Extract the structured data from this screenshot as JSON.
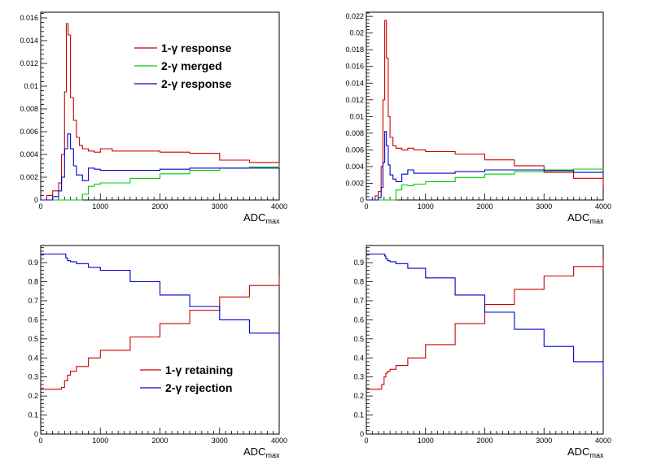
{
  "chart_data": [
    {
      "type": "line",
      "step": true,
      "xlabel": "ADC",
      "xlabel_sub": "max",
      "xlim": [
        0,
        4000
      ],
      "ylim": [
        0,
        0.0165
      ],
      "yticks": [
        0,
        0.002,
        0.004,
        0.006,
        0.008,
        0.01,
        0.012,
        0.014,
        0.016
      ],
      "ytick_labels": [
        "0",
        "0.002",
        "0.004",
        "0.006",
        "0.008",
        "0.01",
        "0.012",
        "0.014",
        "0.016"
      ],
      "xticks": [
        0,
        1000,
        2000,
        3000,
        4000
      ],
      "xtick_labels": [
        "0",
        "1000",
        "2000",
        "3000",
        "4000"
      ],
      "legend": {
        "placement": "top-right"
      },
      "series": [
        {
          "name": "1-γ response",
          "color": "#cc0000",
          "x": [
            0,
            100,
            200,
            300,
            350,
            400,
            430,
            460,
            500,
            550,
            600,
            650,
            700,
            800,
            900,
            1000,
            1200,
            1500,
            2000,
            2500,
            3000,
            3500,
            4000
          ],
          "y": [
            0,
            0.0004,
            0.0008,
            0.0015,
            0.004,
            0.0095,
            0.0155,
            0.0145,
            0.009,
            0.007,
            0.0055,
            0.0048,
            0.0045,
            0.0043,
            0.0042,
            0.0045,
            0.0043,
            0.0043,
            0.0042,
            0.0041,
            0.0035,
            0.0033,
            0.0027
          ]
        },
        {
          "name": "2-γ merged",
          "color": "#00cc00",
          "x": [
            0,
            500,
            700,
            800,
            900,
            1000,
            1500,
            2000,
            2500,
            3000,
            3500,
            4000
          ],
          "y": [
            0,
            0,
            0.0005,
            0.0012,
            0.0014,
            0.0015,
            0.0019,
            0.0023,
            0.0026,
            0.0028,
            0.0029,
            0.003
          ]
        },
        {
          "name": "2-γ response",
          "color": "#0000cc",
          "x": [
            0,
            200,
            300,
            350,
            400,
            450,
            500,
            550,
            600,
            700,
            800,
            900,
            1000,
            1500,
            2000,
            2500,
            3000,
            3500,
            4000
          ],
          "y": [
            0,
            0.0003,
            0.0008,
            0.002,
            0.0045,
            0.0058,
            0.0045,
            0.003,
            0.0022,
            0.0017,
            0.0028,
            0.0027,
            0.0026,
            0.0026,
            0.0027,
            0.0028,
            0.0028,
            0.0028,
            0.0027
          ]
        }
      ]
    },
    {
      "type": "line",
      "step": true,
      "xlabel": "ADC",
      "xlabel_sub": "max",
      "xlim": [
        0,
        4000
      ],
      "ylim": [
        0,
        0.0225
      ],
      "yticks": [
        0,
        0.002,
        0.004,
        0.006,
        0.008,
        0.01,
        0.012,
        0.014,
        0.016,
        0.018,
        0.02,
        0.022
      ],
      "ytick_labels": [
        "0",
        "0.002",
        "0.004",
        "0.006",
        "0.008",
        "0.01",
        "0.012",
        "0.014",
        "0.016",
        "0.018",
        "0.02",
        "0.022"
      ],
      "xticks": [
        0,
        1000,
        2000,
        3000,
        4000
      ],
      "xtick_labels": [
        "0",
        "1000",
        "2000",
        "3000",
        "4000"
      ],
      "series": [
        {
          "color": "#cc0000",
          "x": [
            0,
            150,
            200,
            250,
            280,
            310,
            340,
            370,
            400,
            450,
            500,
            600,
            700,
            800,
            1000,
            1500,
            2000,
            2500,
            3000,
            3500,
            4000
          ],
          "y": [
            0,
            0.0005,
            0.001,
            0.004,
            0.012,
            0.0215,
            0.017,
            0.01,
            0.0075,
            0.0065,
            0.0062,
            0.006,
            0.0062,
            0.006,
            0.0058,
            0.0055,
            0.0048,
            0.0041,
            0.0033,
            0.0026,
            0.0017
          ]
        },
        {
          "color": "#00cc00",
          "x": [
            0,
            400,
            500,
            600,
            700,
            800,
            1000,
            1500,
            2000,
            2500,
            3000,
            3500,
            4000
          ],
          "y": [
            0,
            0,
            0.0012,
            0.0018,
            0.0017,
            0.0019,
            0.0022,
            0.0027,
            0.0031,
            0.0034,
            0.0036,
            0.0037,
            0.0036
          ]
        },
        {
          "color": "#0000cc",
          "x": [
            0,
            200,
            250,
            280,
            310,
            340,
            370,
            400,
            450,
            500,
            600,
            700,
            800,
            1000,
            1500,
            2000,
            2500,
            3000,
            3500,
            4000
          ],
          "y": [
            0,
            0.0003,
            0.0015,
            0.0045,
            0.0082,
            0.0065,
            0.0042,
            0.003,
            0.0025,
            0.0022,
            0.0031,
            0.0036,
            0.0032,
            0.0032,
            0.0034,
            0.0036,
            0.0036,
            0.0035,
            0.0033,
            0.003
          ]
        }
      ]
    },
    {
      "type": "line",
      "step": true,
      "xlabel": "ADC",
      "xlabel_sub": "max",
      "xlim": [
        0,
        4000
      ],
      "ylim": [
        0,
        0.99
      ],
      "yticks": [
        0,
        0.1,
        0.2,
        0.3,
        0.4,
        0.5,
        0.6,
        0.7,
        0.8,
        0.9
      ],
      "ytick_labels": [
        "0",
        "0.1",
        "0.2",
        "0.3",
        "0.4",
        "0.5",
        "0.6",
        "0.7",
        "0.8",
        "0.9"
      ],
      "xticks": [
        0,
        1000,
        2000,
        3000,
        4000
      ],
      "xtick_labels": [
        "0",
        "1000",
        "2000",
        "3000",
        "4000"
      ],
      "legend": {
        "placement": "bottom-center"
      },
      "series": [
        {
          "name": "1-γ retaining",
          "color": "#cc0000",
          "x": [
            0,
            300,
            350,
            400,
            450,
            500,
            600,
            800,
            1000,
            1500,
            2000,
            2500,
            3000,
            3500,
            4000
          ],
          "y": [
            0.235,
            0.236,
            0.245,
            0.28,
            0.31,
            0.33,
            0.355,
            0.4,
            0.44,
            0.51,
            0.58,
            0.65,
            0.72,
            0.78,
            0.825
          ]
        },
        {
          "name": "2-γ rejection",
          "color": "#0000cc",
          "x": [
            0,
            380,
            420,
            450,
            500,
            600,
            800,
            1000,
            1500,
            2000,
            2500,
            3000,
            3500,
            4000
          ],
          "y": [
            0.945,
            0.945,
            0.925,
            0.91,
            0.905,
            0.895,
            0.875,
            0.86,
            0.8,
            0.73,
            0.67,
            0.6,
            0.53,
            0.465
          ]
        }
      ]
    },
    {
      "type": "line",
      "step": true,
      "xlabel": "ADC",
      "xlabel_sub": "max",
      "xlim": [
        0,
        4000
      ],
      "ylim": [
        0,
        0.99
      ],
      "yticks": [
        0,
        0.1,
        0.2,
        0.3,
        0.4,
        0.5,
        0.6,
        0.7,
        0.8,
        0.9
      ],
      "ytick_labels": [
        "0",
        "0.1",
        "0.2",
        "0.3",
        "0.4",
        "0.5",
        "0.6",
        "0.7",
        "0.8",
        "0.9"
      ],
      "xticks": [
        0,
        1000,
        2000,
        3000,
        4000
      ],
      "xtick_labels": [
        "0",
        "1000",
        "2000",
        "3000",
        "4000"
      ],
      "series": [
        {
          "color": "#cc0000",
          "x": [
            0,
            220,
            260,
            300,
            330,
            360,
            400,
            500,
            700,
            1000,
            1500,
            2000,
            2500,
            3000,
            3500,
            4000
          ],
          "y": [
            0.235,
            0.236,
            0.26,
            0.3,
            0.32,
            0.33,
            0.34,
            0.36,
            0.4,
            0.47,
            0.58,
            0.68,
            0.76,
            0.83,
            0.88,
            0.92
          ]
        },
        {
          "color": "#0000cc",
          "x": [
            0,
            280,
            310,
            330,
            360,
            400,
            500,
            700,
            1000,
            1500,
            2000,
            2500,
            3000,
            3500,
            4000
          ],
          "y": [
            0.945,
            0.945,
            0.935,
            0.92,
            0.91,
            0.905,
            0.895,
            0.87,
            0.82,
            0.73,
            0.64,
            0.55,
            0.46,
            0.38,
            0.305
          ]
        }
      ]
    }
  ]
}
